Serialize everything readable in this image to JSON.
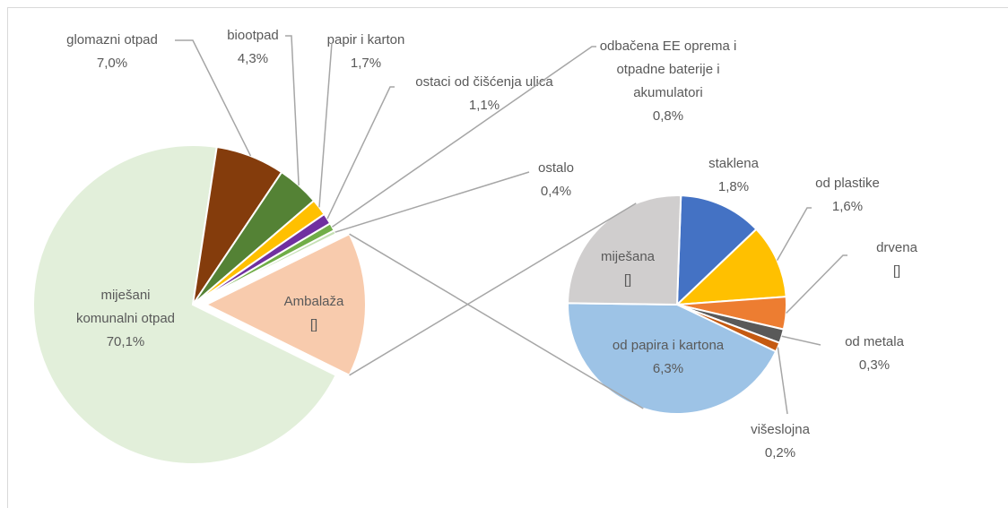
{
  "chart_data": {
    "type": "pie_of_pie",
    "primary": {
      "categories": [
        "miješani komunalni otpad",
        "glomazni otpad",
        "biootpad",
        "papir i karton",
        "ostaci od čišćenja ulica",
        "odbačena EE oprema i otpadne baterije i akumulatori",
        "ostalo",
        "Ambalaža"
      ],
      "values": [
        70.1,
        7.0,
        4.3,
        1.7,
        1.1,
        0.8,
        0.4,
        14.6
      ],
      "value_labels": [
        "70,1%",
        "7,0%",
        "4,3%",
        "1,7%",
        "1,1%",
        "0,8%",
        "0,4%",
        "[]"
      ],
      "colors": [
        "#e2efda",
        "#843c0c",
        "#548235",
        "#ffc000",
        "#7030a0",
        "#70ad47",
        "#c5e0b4",
        "#f8cbad"
      ]
    },
    "secondary": {
      "categories": [
        "staklena",
        "od plastike",
        "drvena",
        "od metala",
        "višeslojna",
        "od papira i kartona",
        "miješana"
      ],
      "values": [
        1.8,
        1.6,
        0.7,
        0.3,
        0.2,
        6.3,
        3.7
      ],
      "value_labels": [
        "1,8%",
        "1,6%",
        "[]",
        "0,3%",
        "0,2%",
        "6,3%",
        "[]"
      ],
      "colors": [
        "#4472c4",
        "#ffc000",
        "#ed7d31",
        "#595959",
        "#c55a11",
        "#9dc3e6",
        "#d0cece"
      ]
    }
  }
}
